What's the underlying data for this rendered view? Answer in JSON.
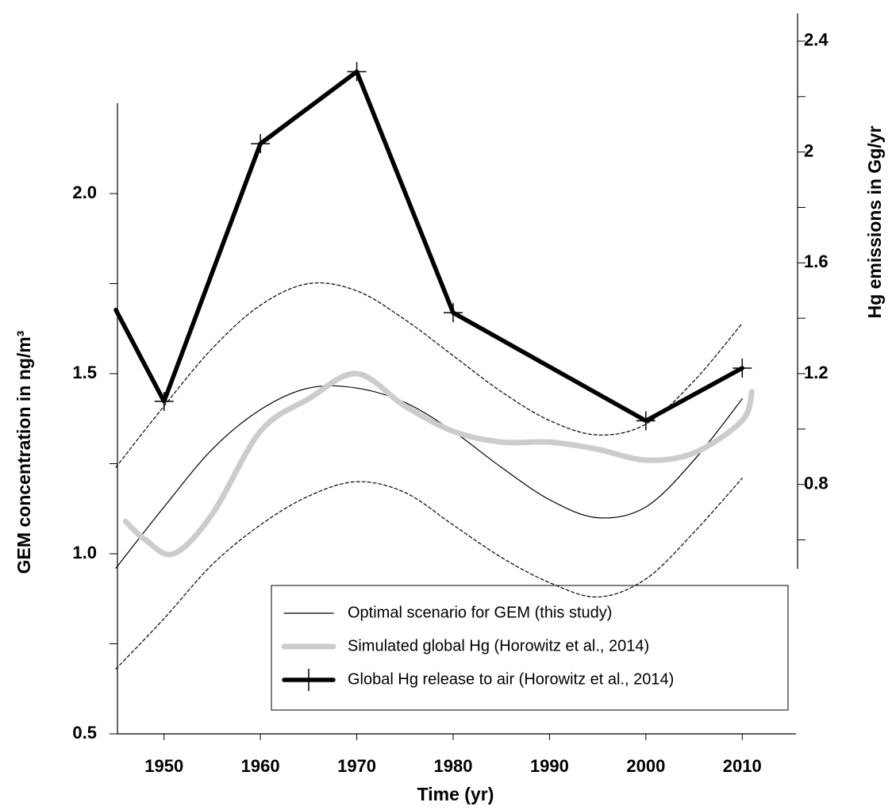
{
  "chart_data": {
    "type": "line",
    "xlabel": "Time (yr)",
    "ylabel": "GEM concentration in ng/m³",
    "y2label": "Hg emissions in Gg/yr",
    "xlim": [
      1945,
      2015
    ],
    "xticks": [
      1950,
      1960,
      1970,
      1980,
      1990,
      2000,
      2010
    ],
    "ylim": [
      0.5,
      2.5
    ],
    "yticks": [
      0.5,
      {
        "value": 1,
        "label": "1.0"
      },
      1.5,
      {
        "value": 2,
        "label": "2.0"
      }
    ],
    "yminorticks": [
      0.75,
      1.25,
      1.75
    ],
    "y2lim": [
      -0.1,
      2.5
    ],
    "y2ticks": [
      0.8,
      1.2,
      1.6,
      2,
      2.4
    ],
    "y2minorticks": [
      0.6,
      1.0,
      1.4,
      1.8,
      2.2
    ],
    "series": [
      {
        "x": [
          1945,
          1950,
          1955,
          1960,
          1965,
          1970,
          1975,
          1980,
          1985,
          1990,
          1995,
          2000,
          2005,
          2010
        ],
        "values": [
          1.24,
          1.41,
          1.57,
          1.69,
          1.75,
          1.73,
          1.65,
          1.55,
          1.45,
          1.37,
          1.33,
          1.36,
          1.48,
          1.64
        ],
        "color": "#000000",
        "line_width": 1.2,
        "dashed": true
      },
      {
        "x": [
          1945,
          1950,
          1955,
          1960,
          1965,
          1970,
          1975,
          1980,
          1985,
          1990,
          1995,
          2000,
          2005,
          2010
        ],
        "values": [
          0.68,
          0.82,
          0.97,
          1.08,
          1.16,
          1.2,
          1.17,
          1.08,
          0.99,
          0.92,
          0.88,
          0.93,
          1.06,
          1.21
        ],
        "color": "#000000",
        "line_width": 1.2,
        "dashed": true
      },
      {
        "name": "Optimal scenario for GEM (this study)",
        "x": [
          1945,
          1950,
          1955,
          1960,
          1965,
          1970,
          1975,
          1980,
          1985,
          1990,
          1995,
          2000,
          2005,
          2010
        ],
        "values": [
          0.96,
          1.13,
          1.29,
          1.4,
          1.46,
          1.46,
          1.42,
          1.34,
          1.24,
          1.15,
          1.1,
          1.13,
          1.26,
          1.43
        ],
        "color": "#000000",
        "line_width": 1.2
      },
      {
        "name": "Simulated global Hg (Horowitz et al., 2014)",
        "x": [
          1946,
          1948,
          1951,
          1955,
          1960,
          1965,
          1970,
          1975,
          1980,
          1985,
          1990,
          1995,
          2000,
          2005,
          2010,
          2011
        ],
        "values": [
          1.09,
          1.04,
          1.0,
          1.11,
          1.34,
          1.43,
          1.5,
          1.41,
          1.34,
          1.31,
          1.31,
          1.29,
          1.26,
          1.28,
          1.37,
          1.45
        ],
        "color": "#cccccc",
        "line_width": 7
      },
      {
        "name": "Global Hg release to air (Horowitz et al., 2014)",
        "axis": "y2",
        "x": [
          1945,
          1950,
          1960,
          1970,
          1980,
          2000,
          2010
        ],
        "values": [
          1.43,
          1.1,
          2.03,
          2.29,
          1.42,
          1.03,
          1.22
        ],
        "color": "#000000",
        "line_width": 5.5,
        "markers": true
      }
    ]
  }
}
